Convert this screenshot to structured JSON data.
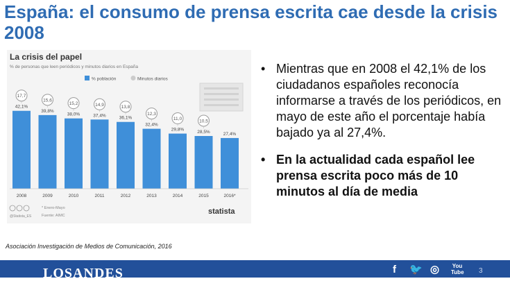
{
  "slide": {
    "title": "España: el consumo de prensa escrita cae desde la crisis 2008",
    "bullets": [
      "Mientras que en 2008 el 42,1% de los ciudadanos españoles reconocía informarse a través de los periódicos, en mayo de este año el porcentaje había bajado ya al 27,4%.",
      "En la actualidad cada español lee prensa escrita poco más de 10 minutos al día de media"
    ],
    "bullet_symbol": "•",
    "source_note": "Asociación Investigación de Medios de Comunicación, 2016",
    "page_number": "3"
  },
  "footer": {
    "logo": "LOSANDES",
    "social_icons": [
      "facebook-icon",
      "twitter-icon",
      "instagram-icon",
      "youtube-icon"
    ],
    "icon_glyphs": [
      "f",
      "🐦",
      "◎",
      "You Tube"
    ]
  },
  "chart_data": {
    "type": "bar",
    "title": "La crisis del papel",
    "subtitle": "% de personas que leen periódicos y minutos diarios en España",
    "categories": [
      "2008",
      "2009",
      "2010",
      "2011",
      "2012",
      "2013",
      "2014",
      "2015",
      "2016*"
    ],
    "series": [
      {
        "name": "% población",
        "values": [
          42.1,
          39.8,
          38.0,
          37.4,
          36.1,
          32.4,
          29.8,
          28.5,
          27.4
        ]
      },
      {
        "name": "Minutos diarios",
        "values": [
          17.7,
          15.6,
          15.2,
          14.9,
          13.8,
          12.3,
          11.0,
          10.5,
          null
        ]
      }
    ],
    "value_labels": [
      "42,1%",
      "39,8%",
      "38,0%",
      "37,4%",
      "36,1%",
      "32,4%",
      "29,8%",
      "28,5%",
      "27,4%"
    ],
    "minute_labels": [
      "17,7",
      "15,6",
      "15,2",
      "14,9",
      "13,8",
      "12,3",
      "11,0",
      "10,5",
      ""
    ],
    "ylim": [
      0,
      60
    ],
    "footnote": "* Enero-Mayo",
    "source": "Fuente: AIMC",
    "handle": "@Statista_ES",
    "brand": "statista",
    "colors": {
      "bars": "#3f8fd9",
      "minutes_badge": "#9b9b9b",
      "legend_bar": "#3f8fd9",
      "legend_minutes": "#cccccc"
    }
  }
}
